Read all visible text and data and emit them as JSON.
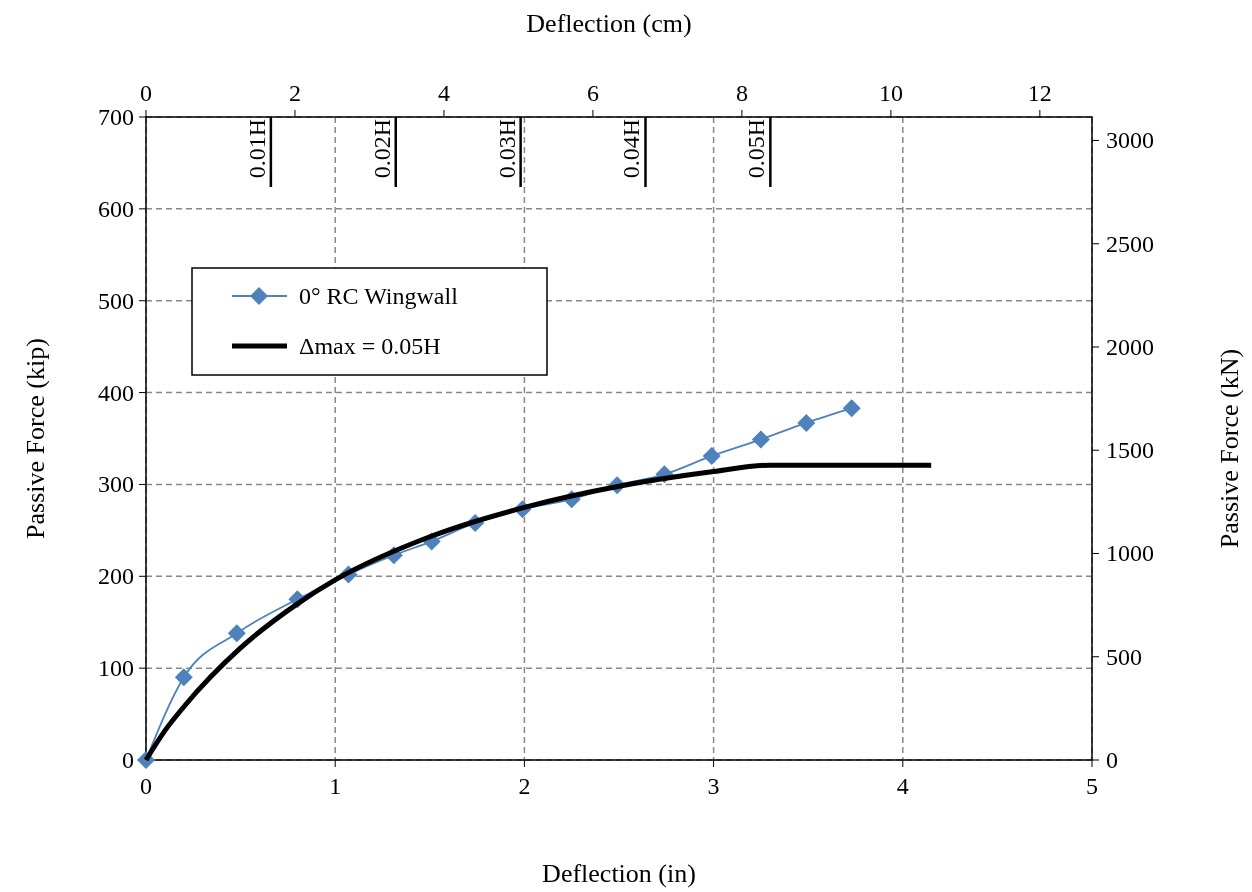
{
  "chart_data": {
    "type": "line",
    "xlabel": "Deflection (in)",
    "ylabel": "Passive Force (kip)",
    "x2label": "Deflection (cm)",
    "y2label": "Passive Force (kN)",
    "xlim": [
      0,
      5
    ],
    "xticks": [
      0,
      1,
      2,
      3,
      4,
      5
    ],
    "ylim": [
      0,
      700
    ],
    "yticks": [
      0,
      100,
      200,
      300,
      400,
      500,
      600,
      700
    ],
    "x2lim": [
      0,
      12.7
    ],
    "x2ticks": [
      0,
      2,
      4,
      6,
      8,
      10,
      12
    ],
    "y2lim": [
      0,
      3113.8
    ],
    "y2ticks": [
      0,
      500,
      1000,
      1500,
      2000,
      2500,
      3000
    ],
    "grid": true,
    "legend": "top left",
    "series": [
      {
        "name": "0° RC Wingwall",
        "color": "#4f81bd",
        "marker": "diamond",
        "x": [
          0,
          0.2,
          0.48,
          0.8,
          1.07,
          1.31,
          1.51,
          1.74,
          1.99,
          2.25,
          2.49,
          2.74,
          2.99,
          3.25,
          3.49,
          3.73
        ],
        "values": [
          0,
          90,
          138,
          175,
          202,
          223,
          238,
          258,
          273,
          284,
          299,
          311,
          331,
          349,
          367,
          383
        ]
      },
      {
        "name": "Δmax = 0.05H",
        "color": "#000000",
        "marker": "none",
        "x": [
          0,
          0.1,
          0.2,
          0.5,
          0.8,
          1.0,
          1.5,
          2.0,
          2.5,
          3.0,
          3.3,
          4.15
        ],
        "values": [
          0,
          32,
          58,
          122,
          170,
          196,
          243,
          275,
          298,
          314,
          321,
          321
        ]
      }
    ],
    "ref_lines": [
      {
        "axis": "x",
        "value": 0.66,
        "label": "0.01H"
      },
      {
        "axis": "x",
        "value": 1.32,
        "label": "0.02H"
      },
      {
        "axis": "x",
        "value": 1.98,
        "label": "0.03H"
      },
      {
        "axis": "x",
        "value": 2.64,
        "label": "0.04H"
      },
      {
        "axis": "x",
        "value": 3.3,
        "label": "0.05H"
      }
    ]
  }
}
